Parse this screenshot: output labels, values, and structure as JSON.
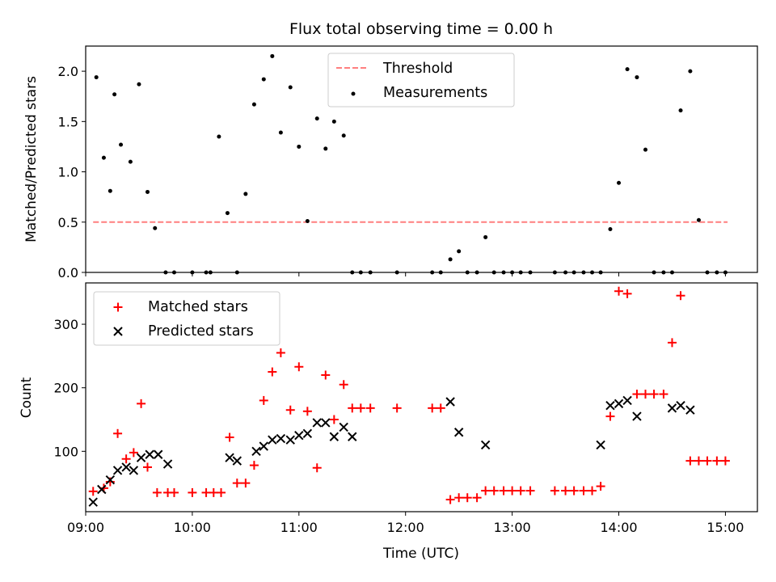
{
  "chart_data": [
    {
      "type": "scatter",
      "title": "Flux total observing time = 0.00 h",
      "xlabel": "",
      "ylabel": "Matched/Predicted stars",
      "xlim": [
        9.0,
        15.3
      ],
      "ylim": [
        0.0,
        2.25
      ],
      "yticks": [
        "0.0",
        "0.5",
        "1.0",
        "1.5",
        "2.0"
      ],
      "grid": false,
      "legend": "top-center",
      "threshold": {
        "name": "Threshold",
        "y": 0.5,
        "x": [
          9.07,
          15.02
        ],
        "color": "#ff7f7f",
        "style": "dashed"
      },
      "series": [
        {
          "name": "Measurements",
          "color": "#000000",
          "marker": "dot",
          "x": [
            9.1,
            9.17,
            9.23,
            9.27,
            9.33,
            9.42,
            9.5,
            9.58,
            9.65,
            9.75,
            9.83,
            10.0,
            10.13,
            10.17,
            10.25,
            10.33,
            10.42,
            10.5,
            10.58,
            10.67,
            10.75,
            10.83,
            10.92,
            11.0,
            11.08,
            11.17,
            11.25,
            11.33,
            11.42,
            11.5,
            11.58,
            11.67,
            11.92,
            12.25,
            12.33,
            12.42,
            12.5,
            12.58,
            12.67,
            12.75,
            12.83,
            12.92,
            13.0,
            13.08,
            13.17,
            13.4,
            13.5,
            13.58,
            13.67,
            13.75,
            13.83,
            13.92,
            14.0,
            14.08,
            14.17,
            14.25,
            14.33,
            14.42,
            14.5,
            14.58,
            14.67,
            14.75,
            14.83,
            14.92,
            15.0
          ],
          "y": [
            1.94,
            1.14,
            0.81,
            1.77,
            1.27,
            1.1,
            1.87,
            0.8,
            0.44,
            0.0,
            0.0,
            0.0,
            0.0,
            0.0,
            1.35,
            0.59,
            0.0,
            0.78,
            1.67,
            1.92,
            2.15,
            1.39,
            1.84,
            1.25,
            0.51,
            1.53,
            1.23,
            1.5,
            1.36,
            0.0,
            0.0,
            0.0,
            0.0,
            0.0,
            0.0,
            0.13,
            0.21,
            0.0,
            0.0,
            0.35,
            0.0,
            0.0,
            0.0,
            0.0,
            0.0,
            0.0,
            0.0,
            0.0,
            0.0,
            0.0,
            0.0,
            0.43,
            0.89,
            2.02,
            1.94,
            1.22,
            0.0,
            0.0,
            0.0,
            1.61,
            2.0,
            0.52,
            0.0,
            0.0,
            0.0
          ]
        }
      ]
    },
    {
      "type": "scatter",
      "title": "",
      "xlabel": "Time (UTC)",
      "ylabel": "Count",
      "xlim": [
        9.0,
        15.3
      ],
      "ylim": [
        5,
        365
      ],
      "yticks": [
        "100",
        "200",
        "300"
      ],
      "xticks": [
        "09:00",
        "10:00",
        "11:00",
        "12:00",
        "13:00",
        "14:00",
        "15:00"
      ],
      "grid": false,
      "legend": "top-left",
      "series": [
        {
          "name": "Matched stars",
          "color": "#ff0000",
          "marker": "plus",
          "x": [
            9.07,
            9.17,
            9.23,
            9.3,
            9.38,
            9.45,
            9.52,
            9.58,
            9.67,
            9.77,
            9.83,
            10.0,
            10.13,
            10.2,
            10.27,
            10.35,
            10.42,
            10.5,
            10.58,
            10.67,
            10.75,
            10.83,
            10.92,
            11.0,
            11.08,
            11.17,
            11.25,
            11.33,
            11.42,
            11.5,
            11.58,
            11.67,
            11.92,
            12.25,
            12.33,
            12.42,
            12.5,
            12.58,
            12.67,
            12.75,
            12.83,
            12.92,
            13.0,
            13.08,
            13.17,
            13.4,
            13.5,
            13.58,
            13.67,
            13.75,
            13.83,
            13.92,
            14.0,
            14.08,
            14.17,
            14.25,
            14.33,
            14.42,
            14.5,
            14.58,
            14.67,
            14.75,
            14.83,
            14.92,
            15.0
          ],
          "y": [
            37,
            42,
            52,
            128,
            88,
            98,
            175,
            75,
            35,
            35,
            35,
            35,
            35,
            35,
            35,
            122,
            50,
            50,
            78,
            180,
            225,
            255,
            165,
            233,
            163,
            74,
            220,
            150,
            205,
            168,
            168,
            168,
            168,
            168,
            168,
            24,
            27,
            27,
            27,
            38,
            38,
            38,
            38,
            38,
            38,
            38,
            38,
            38,
            38,
            38,
            45,
            155,
            352,
            348,
            190,
            190,
            190,
            190,
            271,
            345,
            85,
            85,
            85,
            85,
            85
          ]
        },
        {
          "name": "Predicted stars",
          "color": "#000000",
          "marker": "x",
          "x": [
            9.07,
            9.15,
            9.23,
            9.3,
            9.38,
            9.45,
            9.52,
            9.6,
            9.68,
            9.77,
            10.35,
            10.42,
            10.6,
            10.67,
            10.75,
            10.83,
            10.92,
            11.0,
            11.08,
            11.17,
            11.25,
            11.33,
            11.42,
            11.5,
            12.42,
            12.5,
            12.75,
            13.83,
            13.92,
            14.0,
            14.08,
            14.17,
            14.5,
            14.58,
            14.67
          ],
          "y": [
            20,
            40,
            55,
            70,
            75,
            70,
            90,
            95,
            95,
            80,
            90,
            85,
            100,
            108,
            118,
            120,
            118,
            125,
            128,
            145,
            145,
            123,
            138,
            123,
            178,
            130,
            110,
            110,
            172,
            175,
            180,
            155,
            168,
            172,
            165
          ]
        }
      ]
    }
  ]
}
